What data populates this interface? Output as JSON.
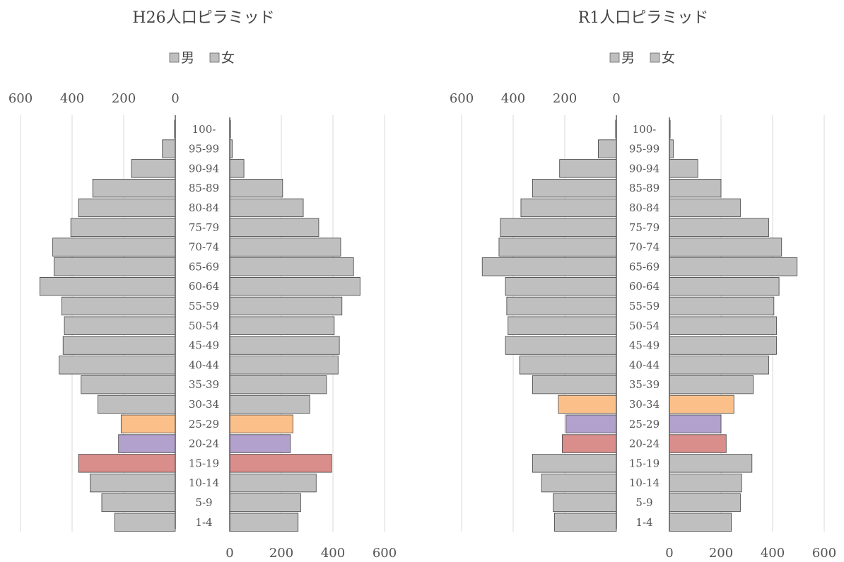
{
  "chart_data": [
    {
      "type": "bar",
      "orientation": "horizontal-pyramid",
      "title": "H26人口ピラミッド",
      "legend": {
        "placement": "top-center",
        "entries": [
          "男",
          "女"
        ]
      },
      "categories": [
        "100-",
        "95-99",
        "90-94",
        "85-89",
        "80-84",
        "75-79",
        "70-74",
        "65-69",
        "60-64",
        "55-59",
        "50-54",
        "45-49",
        "40-44",
        "35-39",
        "30-34",
        "25-29",
        "20-24",
        "15-19",
        "10-14",
        "5-9",
        "1-4"
      ],
      "series": [
        {
          "name": "男",
          "values": [
            3,
            50,
            170,
            320,
            375,
            405,
            475,
            470,
            525,
            440,
            430,
            435,
            450,
            365,
            300,
            210,
            220,
            375,
            330,
            285,
            235
          ]
        },
        {
          "name": "女",
          "values": [
            3,
            10,
            55,
            205,
            285,
            345,
            430,
            480,
            505,
            435,
            405,
            425,
            420,
            375,
            310,
            245,
            235,
            395,
            335,
            275,
            265
          ]
        }
      ],
      "highlight_colors": {
        "30-34": null,
        "25-29": "#FBC08A",
        "20-24": "#B2A1CC",
        "15-19": "#DA8E8B"
      },
      "left_axis_ticks": [
        "600",
        "400",
        "200",
        "0"
      ],
      "right_axis_ticks": [
        "0",
        "200",
        "400",
        "600"
      ],
      "xlim": [
        0,
        600
      ],
      "grid": true
    },
    {
      "type": "bar",
      "orientation": "horizontal-pyramid",
      "title": "R1人口ピラミッド",
      "legend": {
        "placement": "top-center",
        "entries": [
          "男",
          "女"
        ]
      },
      "categories": [
        "100-",
        "95-99",
        "90-94",
        "85-89",
        "80-84",
        "75-79",
        "70-74",
        "65-69",
        "60-64",
        "55-59",
        "50-54",
        "45-49",
        "40-44",
        "35-39",
        "30-34",
        "25-29",
        "20-24",
        "15-19",
        "10-14",
        "5-9",
        "1-4"
      ],
      "series": [
        {
          "name": "男",
          "values": [
            3,
            70,
            220,
            325,
            370,
            450,
            455,
            520,
            430,
            425,
            420,
            430,
            375,
            325,
            225,
            195,
            210,
            325,
            290,
            245,
            240
          ]
        },
        {
          "name": "女",
          "values": [
            3,
            15,
            110,
            200,
            275,
            385,
            435,
            495,
            425,
            405,
            415,
            415,
            385,
            325,
            250,
            200,
            220,
            320,
            280,
            275,
            240
          ]
        }
      ],
      "highlight_colors": {
        "30-34": "#FBC08A",
        "25-29": "#B2A1CC",
        "20-24": "#DA8E8B"
      },
      "left_axis_ticks": [
        "600",
        "400",
        "200",
        "0"
      ],
      "right_axis_ticks": [
        "0",
        "200",
        "400",
        "600"
      ],
      "xlim": [
        0,
        600
      ],
      "grid": true
    }
  ],
  "colors": {
    "default_bar": "#BFBFBF",
    "bar_stroke": "#404040",
    "grid": "#D9D9D9",
    "axis": "#595959"
  }
}
